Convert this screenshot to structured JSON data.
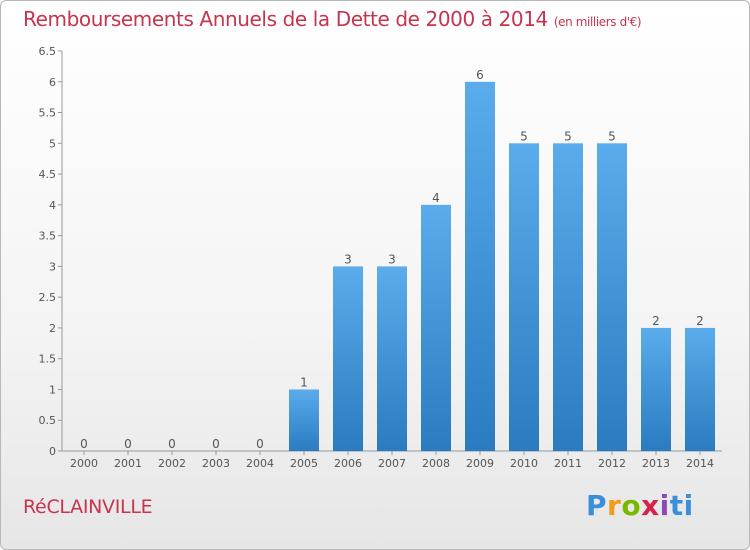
{
  "title": "Remboursements Annuels de la Dette de 2000 à 2014",
  "unit": "(en milliers d'€)",
  "commune": "RéCLAINVILLE",
  "logo": "Proxiti",
  "colors": {
    "title": "#c7344e",
    "bar_top": "#5aacec",
    "bar_bottom": "#2a7bc0"
  },
  "chart_data": {
    "type": "bar",
    "title": "Remboursements Annuels de la Dette de 2000 à 2014",
    "subtitle": "(en milliers d'€)",
    "categories": [
      "2000",
      "2001",
      "2002",
      "2003",
      "2004",
      "2005",
      "2006",
      "2007",
      "2008",
      "2009",
      "2010",
      "2011",
      "2012",
      "2013",
      "2014"
    ],
    "values": [
      0,
      0,
      0,
      0,
      0,
      1,
      3,
      3,
      4,
      6,
      5,
      5,
      5,
      2,
      2
    ],
    "data_labels": [
      "0",
      "0",
      "0",
      "0",
      "0",
      "1",
      "3",
      "3",
      "4",
      "6",
      "5",
      "5",
      "5",
      "2",
      "2"
    ],
    "ylim": [
      0,
      6.5
    ],
    "yticks": [
      "0",
      "0.5",
      "1",
      "1.5",
      "2",
      "2.5",
      "3",
      "3.5",
      "4",
      "4.5",
      "5",
      "5.5",
      "6",
      "6.5"
    ],
    "grid": false,
    "legend": "none"
  }
}
